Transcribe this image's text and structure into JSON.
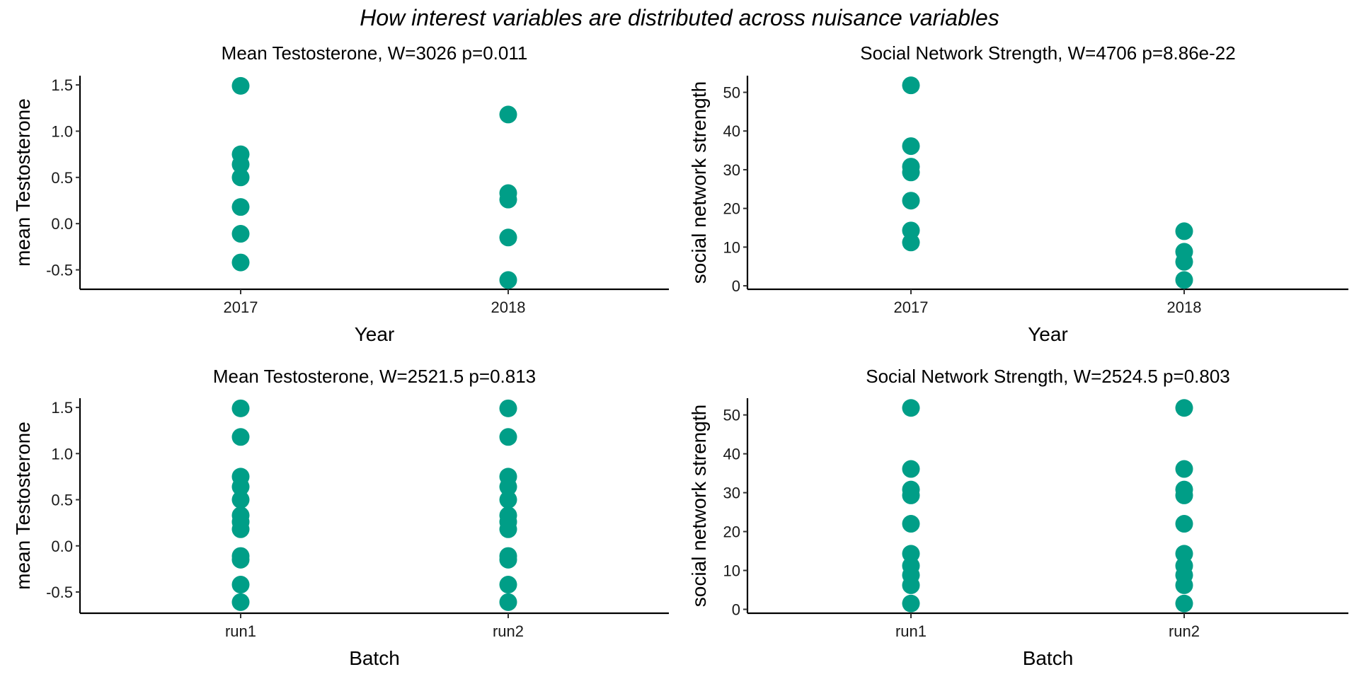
{
  "figure": {
    "title": "How interest variables are distributed across nuisance variables",
    "point_color": "#009E87"
  },
  "chart_data": [
    {
      "type": "scatter",
      "title": "Mean Testosterone, W=3026 p=0.011",
      "xlabel": "Year",
      "ylabel": "mean Testosterone",
      "categories": [
        "2017",
        "2018"
      ],
      "yticks": [
        -0.5,
        0.0,
        0.5,
        1.0,
        1.5
      ],
      "ytick_labels": [
        "-0.5",
        "0.0",
        "0.5",
        "1.0",
        "1.5"
      ],
      "ylim": [
        -0.71,
        1.6
      ],
      "grid": false,
      "series": [
        {
          "name": "2017",
          "values": [
            1.49,
            0.75,
            0.64,
            0.5,
            0.18,
            -0.11,
            -0.42
          ]
        },
        {
          "name": "2018",
          "values": [
            1.18,
            0.33,
            0.26,
            -0.15,
            -0.61
          ]
        }
      ]
    },
    {
      "type": "scatter",
      "title": "Social Network Strength, W=4706 p=8.86e-22",
      "xlabel": "Year",
      "ylabel": "social network strength",
      "categories": [
        "2017",
        "2018"
      ],
      "yticks": [
        0,
        10,
        20,
        30,
        40,
        50
      ],
      "ytick_labels": [
        "0",
        "10",
        "20",
        "30",
        "40",
        "50"
      ],
      "ylim": [
        -0.9,
        54.3
      ],
      "grid": false,
      "series": [
        {
          "name": "2017",
          "values": [
            51.8,
            36.1,
            30.8,
            29.3,
            22.0,
            14.3,
            11.2
          ]
        },
        {
          "name": "2018",
          "values": [
            14.1,
            8.8,
            6.2,
            1.5
          ]
        }
      ]
    },
    {
      "type": "scatter",
      "title": "Mean Testosterone, W=2521.5 p=0.813",
      "xlabel": "Batch",
      "ylabel": "mean Testosterone",
      "categories": [
        "run1",
        "run2"
      ],
      "yticks": [
        -0.5,
        0.0,
        0.5,
        1.0,
        1.5
      ],
      "ytick_labels": [
        "-0.5",
        "0.0",
        "0.5",
        "1.0",
        "1.5"
      ],
      "ylim": [
        -0.73,
        1.6
      ],
      "grid": false,
      "series": [
        {
          "name": "run1",
          "values": [
            1.49,
            1.18,
            0.75,
            0.64,
            0.5,
            0.33,
            0.26,
            0.18,
            -0.11,
            -0.15,
            -0.42,
            -0.61
          ]
        },
        {
          "name": "run2",
          "values": [
            1.49,
            1.18,
            0.75,
            0.64,
            0.5,
            0.33,
            0.26,
            0.18,
            -0.11,
            -0.15,
            -0.42,
            -0.61
          ]
        }
      ]
    },
    {
      "type": "scatter",
      "title": "Social Network Strength, W=2524.5 p=0.803",
      "xlabel": "Batch",
      "ylabel": "social network strength",
      "categories": [
        "run1",
        "run2"
      ],
      "yticks": [
        0,
        10,
        20,
        30,
        40,
        50
      ],
      "ytick_labels": [
        "0",
        "10",
        "20",
        "30",
        "40",
        "50"
      ],
      "ylim": [
        -1.0,
        54.3
      ],
      "grid": false,
      "series": [
        {
          "name": "run1",
          "values": [
            51.8,
            36.1,
            30.8,
            29.3,
            22.0,
            14.3,
            11.2,
            8.8,
            6.2,
            1.5
          ]
        },
        {
          "name": "run2",
          "values": [
            51.8,
            36.1,
            30.8,
            29.3,
            22.0,
            14.3,
            11.2,
            8.8,
            6.2,
            1.5
          ]
        }
      ]
    }
  ]
}
